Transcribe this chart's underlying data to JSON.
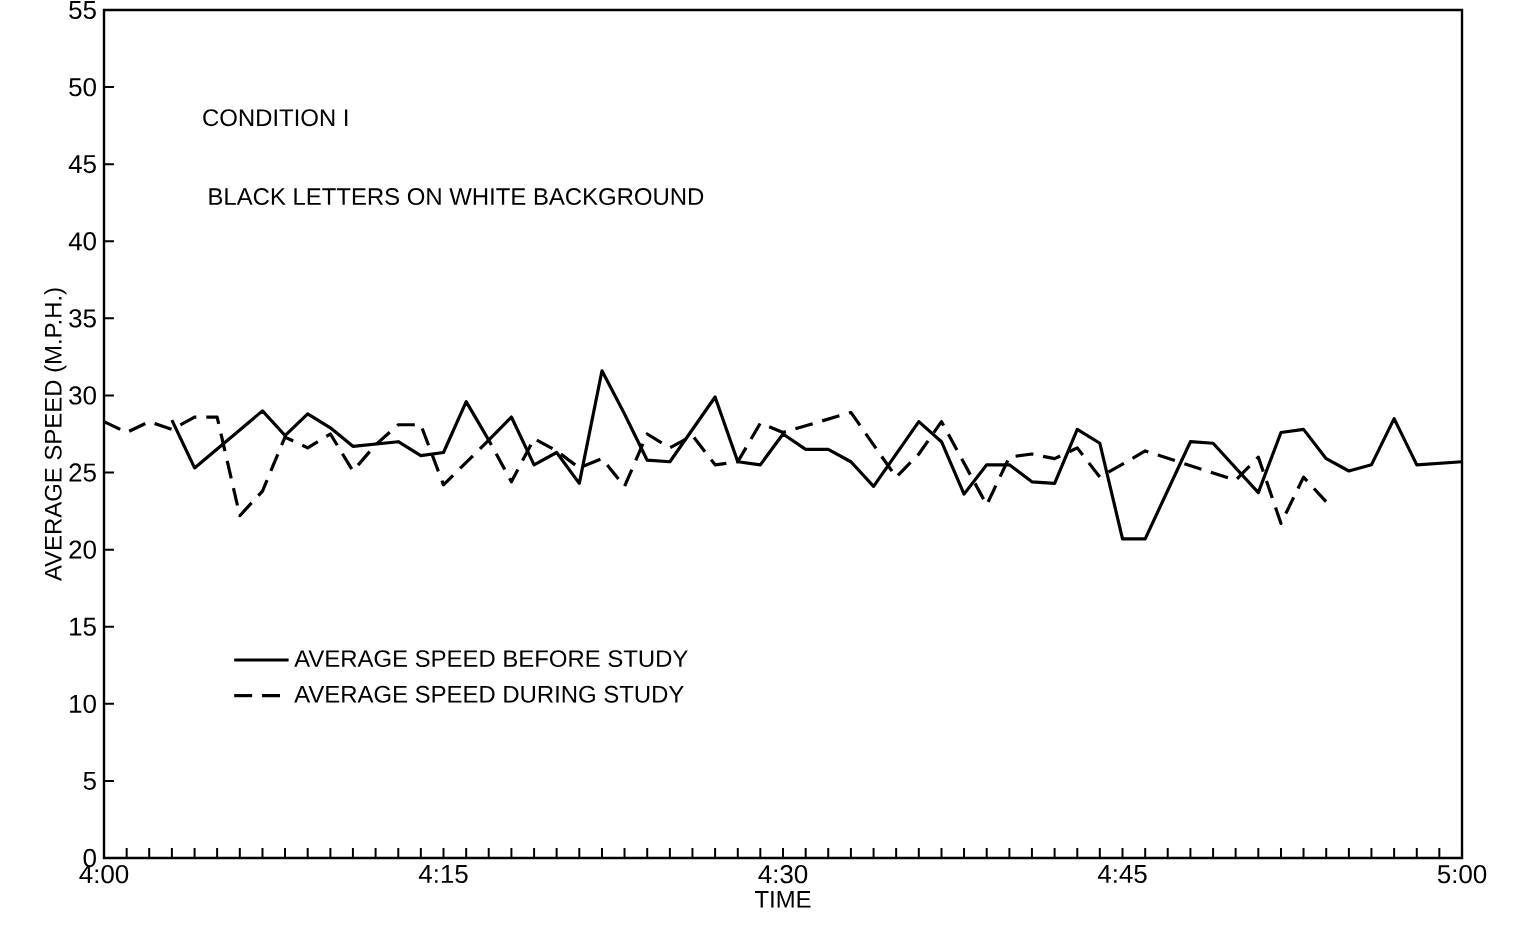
{
  "chart_data": {
    "type": "line",
    "annotations": [
      "CONDITION  I",
      "BLACK LETTERS ON WHITE BACKGROUND"
    ],
    "xlabel": "TIME",
    "ylabel": "AVERAGE SPEED (M.P.H.)",
    "xlim": [
      4,
      5
    ],
    "ylim": [
      0,
      55
    ],
    "yticks": [
      0,
      5,
      10,
      15,
      20,
      25,
      30,
      35,
      40,
      45,
      50,
      55
    ],
    "xticks": [
      {
        "value": 4,
        "label": "4:00"
      },
      {
        "value": 4.0167,
        "label": null
      },
      {
        "value": 4.0333,
        "label": null
      },
      {
        "value": 4.05,
        "label": null
      },
      {
        "value": 4.0667,
        "label": null
      },
      {
        "value": 4.0833,
        "label": null
      },
      {
        "value": 4.1,
        "label": null
      },
      {
        "value": 4.1167,
        "label": null
      },
      {
        "value": 4.1333,
        "label": null
      },
      {
        "value": 4.15,
        "label": null
      },
      {
        "value": 4.1667,
        "label": null
      },
      {
        "value": 4.1833,
        "label": null
      },
      {
        "value": 4.2,
        "label": null
      },
      {
        "value": 4.2167,
        "label": null
      },
      {
        "value": 4.2333,
        "label": null
      },
      {
        "value": 4.25,
        "label": "4:15"
      },
      {
        "value": 4.2667,
        "label": null
      },
      {
        "value": 4.2833,
        "label": null
      },
      {
        "value": 4.3,
        "label": null
      },
      {
        "value": 4.3167,
        "label": null
      },
      {
        "value": 4.3333,
        "label": null
      },
      {
        "value": 4.35,
        "label": null
      },
      {
        "value": 4.3667,
        "label": null
      },
      {
        "value": 4.3833,
        "label": null
      },
      {
        "value": 4.4,
        "label": null
      },
      {
        "value": 4.4167,
        "label": null
      },
      {
        "value": 4.4333,
        "label": null
      },
      {
        "value": 4.45,
        "label": null
      },
      {
        "value": 4.4667,
        "label": null
      },
      {
        "value": 4.4833,
        "label": null
      },
      {
        "value": 4.5,
        "label": "4:30"
      },
      {
        "value": 4.5167,
        "label": null
      },
      {
        "value": 4.5333,
        "label": null
      },
      {
        "value": 4.55,
        "label": null
      },
      {
        "value": 4.5667,
        "label": null
      },
      {
        "value": 4.5833,
        "label": null
      },
      {
        "value": 4.6,
        "label": null
      },
      {
        "value": 4.6167,
        "label": null
      },
      {
        "value": 4.6333,
        "label": null
      },
      {
        "value": 4.65,
        "label": null
      },
      {
        "value": 4.6667,
        "label": null
      },
      {
        "value": 4.6833,
        "label": null
      },
      {
        "value": 4.7,
        "label": null
      },
      {
        "value": 4.7167,
        "label": null
      },
      {
        "value": 4.7333,
        "label": null
      },
      {
        "value": 4.75,
        "label": "4:45"
      },
      {
        "value": 4.7667,
        "label": null
      },
      {
        "value": 4.7833,
        "label": null
      },
      {
        "value": 4.8,
        "label": null
      },
      {
        "value": 4.8167,
        "label": null
      },
      {
        "value": 4.8333,
        "label": null
      },
      {
        "value": 4.85,
        "label": null
      },
      {
        "value": 4.8667,
        "label": null
      },
      {
        "value": 4.8833,
        "label": null
      },
      {
        "value": 4.9,
        "label": null
      },
      {
        "value": 4.9167,
        "label": null
      },
      {
        "value": 4.9333,
        "label": null
      },
      {
        "value": 4.95,
        "label": null
      },
      {
        "value": 4.9667,
        "label": null
      },
      {
        "value": 4.9833,
        "label": null
      },
      {
        "value": 5,
        "label": "5:00"
      }
    ],
    "legend": "bottom left",
    "grid": false,
    "series": [
      {
        "name": "AVERAGE SPEED BEFORE STUDY",
        "color": "#000000",
        "line_style": "solid",
        "x": [
          4.05,
          4.0667,
          4.1167,
          4.1333,
          4.15,
          4.1667,
          4.1833,
          4.2167,
          4.2333,
          4.25,
          4.2667,
          4.2833,
          4.3,
          4.3167,
          4.3333,
          4.35,
          4.3667,
          4.3833,
          4.4,
          4.4167,
          4.45,
          4.4667,
          4.4833,
          4.5,
          4.5167,
          4.5333,
          4.55,
          4.5667,
          4.6,
          4.6167,
          4.6333,
          4.65,
          4.6667,
          4.6833,
          4.7,
          4.7167,
          4.7333,
          4.75,
          4.7667,
          4.8,
          4.8167,
          4.85,
          4.8667,
          4.8833,
          4.9,
          4.9167,
          4.9333,
          4.95,
          4.9667,
          5
        ],
        "values": [
          28.4,
          25.3,
          29.0,
          27.4,
          28.8,
          27.9,
          26.7,
          27.0,
          26.1,
          26.3,
          29.6,
          27.1,
          28.6,
          25.5,
          26.3,
          24.3,
          31.6,
          28.8,
          25.8,
          25.7,
          29.9,
          25.7,
          25.5,
          27.5,
          26.5,
          26.5,
          25.7,
          24.1,
          28.3,
          27.0,
          23.6,
          25.5,
          25.5,
          24.4,
          24.3,
          27.8,
          26.9,
          20.7,
          20.7,
          27.0,
          26.9,
          23.7,
          27.6,
          27.8,
          25.9,
          25.1,
          25.5,
          28.5,
          25.5,
          25.7
        ]
      },
      {
        "name": "AVERAGE SPEED DURING STUDY",
        "color": "#000000",
        "line_style": "dashed",
        "x": [
          4,
          4.0167,
          4.0333,
          4.05,
          4.0667,
          4.0833,
          4.1,
          4.1167,
          4.1333,
          4.15,
          4.1667,
          4.1833,
          4.2,
          4.2167,
          4.2333,
          4.25,
          4.2833,
          4.3,
          4.3167,
          4.3333,
          4.35,
          4.3667,
          4.3833,
          4.4,
          4.4167,
          4.4333,
          4.45,
          4.4667,
          4.4833,
          4.5,
          4.55,
          4.5833,
          4.6,
          4.6167,
          4.65,
          4.6667,
          4.6833,
          4.7,
          4.7167,
          4.7333,
          4.7667,
          4.8333,
          4.85,
          4.8667,
          4.8833,
          4.9
        ],
        "values": [
          28.3,
          27.6,
          28.3,
          27.8,
          28.6,
          28.6,
          22.2,
          23.8,
          27.3,
          26.6,
          27.5,
          25.1,
          26.8,
          28.1,
          28.1,
          24.2,
          27.1,
          24.4,
          27.2,
          26.4,
          25.3,
          25.9,
          24.1,
          27.5,
          26.6,
          27.4,
          25.5,
          25.7,
          28.2,
          27.6,
          28.9,
          24.7,
          26.2,
          28.3,
          22.9,
          26.0,
          26.2,
          25.9,
          26.6,
          24.7,
          26.4,
          24.5,
          26.0,
          21.7,
          24.7,
          23.1
        ]
      }
    ]
  }
}
